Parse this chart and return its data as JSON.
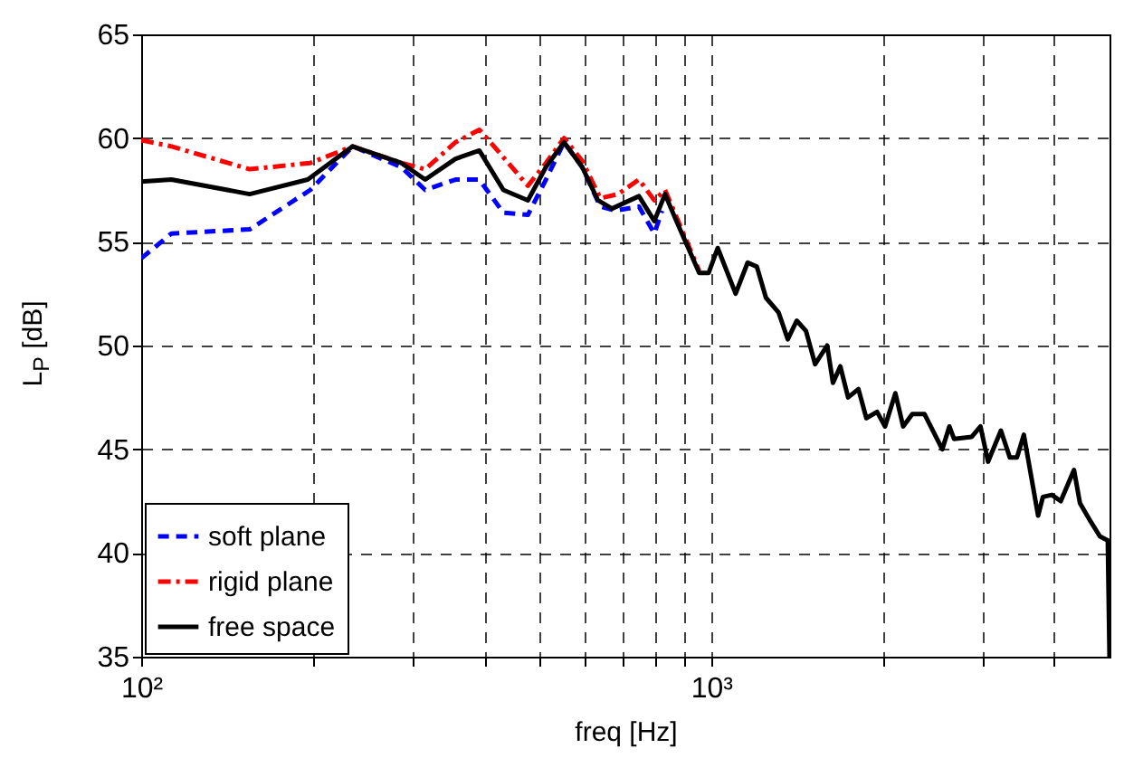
{
  "chart_data": {
    "type": "line",
    "xlabel": "freq [Hz]",
    "ylabel": "L$_{P}$ [dB]",
    "log": "x",
    "grid": true,
    "legend": "bottom left",
    "xlim": [
      100,
      5000
    ],
    "ylim": [
      35,
      65
    ],
    "xticks": [
      {
        "value": 100,
        "label": "10²"
      },
      {
        "value": 200,
        "label": null
      },
      {
        "value": 300,
        "label": null
      },
      {
        "value": 400,
        "label": null
      },
      {
        "value": 500,
        "label": null
      },
      {
        "value": 600,
        "label": null
      },
      {
        "value": 700,
        "label": null
      },
      {
        "value": 800,
        "label": null
      },
      {
        "value": 900,
        "label": null
      },
      {
        "value": 1000,
        "label": "10³"
      },
      {
        "value": 2000,
        "label": null
      },
      {
        "value": 3000,
        "label": null
      },
      {
        "value": 4000,
        "label": null
      }
    ],
    "yticks": [
      35,
      40,
      45,
      50,
      55,
      60,
      65
    ],
    "series": [
      {
        "name": "soft plane",
        "color": "#0000ff",
        "line_style": "dashed",
        "x": [
          100,
          113,
          155,
          198,
          235,
          286,
          315,
          356,
          392,
          432,
          477,
          513,
          552,
          594,
          639,
          679,
          747,
          795,
          820
        ],
        "values": [
          54.2,
          55.4,
          55.6,
          57.5,
          59.6,
          58.6,
          57.5,
          58.0,
          58.0,
          56.4,
          56.3,
          58.0,
          59.8,
          58.6,
          56.7,
          56.5,
          56.7,
          55.4,
          56.5
        ]
      },
      {
        "name": "rigid plane",
        "color": "#ff0000",
        "line_style": "dashdot",
        "x": [
          100,
          113,
          155,
          198,
          235,
          286,
          315,
          356,
          392,
          422,
          477,
          513,
          552,
          594,
          639,
          687,
          747,
          795,
          830,
          866,
          953
        ],
        "values": [
          59.9,
          59.6,
          58.5,
          58.8,
          59.6,
          58.8,
          58.5,
          59.8,
          60.4,
          59.4,
          57.7,
          58.8,
          60.0,
          58.9,
          57.1,
          57.3,
          58.0,
          57.0,
          57.5,
          56.3,
          53.6
        ]
      },
      {
        "name": "free space",
        "color": "#000000",
        "line_style": "solid",
        "x": [
          100,
          113,
          155,
          196,
          235,
          286,
          315,
          356,
          392,
          432,
          477,
          513,
          552,
          594,
          633,
          670,
          747,
          795,
          830,
          866,
          953,
          990,
          1027,
          1104,
          1159,
          1203,
          1248,
          1313,
          1363,
          1413,
          1467,
          1522,
          1598,
          1636,
          1685,
          1739,
          1813,
          1872,
          1955,
          2019,
          2105,
          2172,
          2254,
          2367,
          2544,
          2618,
          2668,
          2866,
          2969,
          3061,
          3224,
          3343,
          3440,
          3537,
          3747,
          3820,
          3960,
          4106,
          4332,
          4437,
          4637,
          4810,
          4965,
          5000
        ],
        "values": [
          57.9,
          58.0,
          57.3,
          58.0,
          59.6,
          58.8,
          58.0,
          59.0,
          59.4,
          57.5,
          57.0,
          58.6,
          59.8,
          58.6,
          57.0,
          56.6,
          57.2,
          56.0,
          57.3,
          56.1,
          53.5,
          53.5,
          54.7,
          52.5,
          54.0,
          53.8,
          52.3,
          51.6,
          50.3,
          51.2,
          50.7,
          49.1,
          50.0,
          48.2,
          49.0,
          47.5,
          47.9,
          46.5,
          46.8,
          46.1,
          47.7,
          46.1,
          46.7,
          46.7,
          45.0,
          46.1,
          45.5,
          45.6,
          46.1,
          44.4,
          45.9,
          44.6,
          44.6,
          45.7,
          41.8,
          42.7,
          42.8,
          42.5,
          44.0,
          42.4,
          41.5,
          40.8,
          40.6,
          35
        ]
      }
    ]
  }
}
